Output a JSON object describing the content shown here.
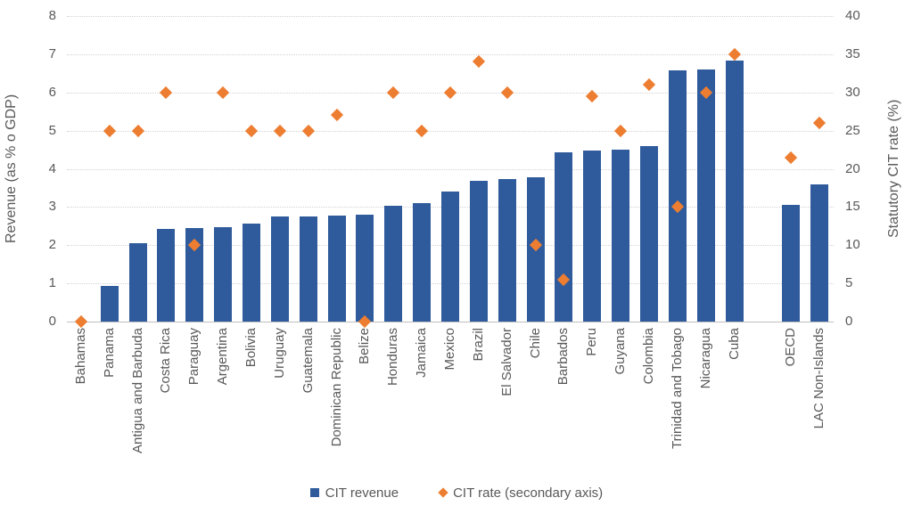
{
  "chart_data": {
    "type": "bar",
    "categories": [
      "Bahamas",
      "Panama",
      "Antigua and Barbuda",
      "Costa Rica",
      "Paraguay",
      "Argentina",
      "Bolivia",
      "Uruguay",
      "Guatemala",
      "Dominican Republic",
      "Belize",
      "Honduras",
      "Jamaica",
      "Mexico",
      "Brazil",
      "El Salvador",
      "Chile",
      "Barbados",
      "Peru",
      "Guyana",
      "Colombia",
      "Trinidad and Tobago",
      "Nicaragua",
      "Cuba",
      "OECD",
      "LAC Non-Islands"
    ],
    "gap_before_index": 24,
    "series": [
      {
        "name": "CIT revenue",
        "type": "bar",
        "axis": "left",
        "color": "#2f5b9c",
        "values": [
          0,
          0.93,
          2.06,
          2.42,
          2.44,
          2.48,
          2.57,
          2.75,
          2.76,
          2.78,
          2.79,
          3.04,
          3.1,
          3.4,
          3.69,
          3.73,
          3.79,
          4.42,
          4.48,
          4.51,
          4.6,
          6.57,
          6.6,
          6.83,
          3.05,
          3.6
        ]
      },
      {
        "name": "CIT rate (secondary axis)",
        "type": "scatter",
        "marker": "diamond",
        "axis": "right",
        "color": "#ed7d31",
        "values": [
          0,
          25,
          25,
          30,
          10,
          30,
          25,
          25,
          25,
          27,
          0,
          30,
          25,
          30,
          34,
          30,
          10,
          5.5,
          29.5,
          25,
          31,
          15,
          30,
          35,
          21.5,
          26
        ]
      }
    ],
    "left_axis": {
      "title": "Revenue (as % o GDP)",
      "min": 0,
      "max": 8,
      "ticks": [
        0,
        1,
        2,
        3,
        4,
        5,
        6,
        7,
        8
      ]
    },
    "right_axis": {
      "title": "Statutory CIT rate (%)",
      "min": 0,
      "max": 40,
      "ticks": [
        0,
        5,
        10,
        15,
        20,
        25,
        30,
        35,
        40
      ]
    },
    "grid": "dotted horizontal",
    "legend_position": "bottom",
    "legend": [
      {
        "label": "CIT revenue",
        "marker": "square",
        "color": "#2f5b9c"
      },
      {
        "label": "CIT rate (secondary axis)",
        "marker": "diamond",
        "color": "#ed7d31"
      }
    ]
  },
  "colors": {
    "bar": "#2f5b9c",
    "marker": "#ed7d31",
    "axis_text": "#595959",
    "gridline": "#d2d2d2",
    "baseline": "#bfbfbf",
    "background": "#ffffff"
  }
}
